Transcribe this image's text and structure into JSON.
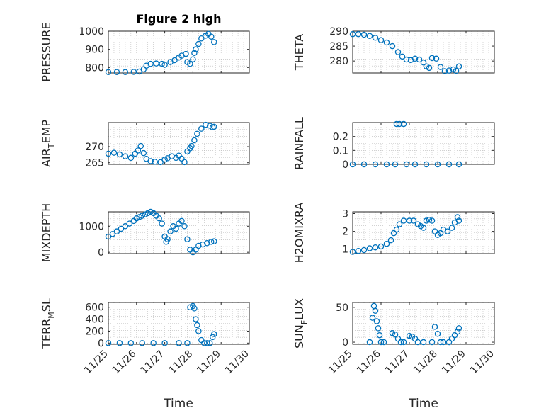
{
  "figure": {
    "title": "Figure 2 high",
    "xlabel": "Time",
    "marker_color": "#0072bd"
  },
  "chart_data": [
    {
      "type": "scatter",
      "ylabel": "PRESSURE",
      "title": "Figure 2 high",
      "xlim": [
        0,
        5
      ],
      "ylim": [
        770,
        1000
      ],
      "yticks": [
        800,
        900,
        1000
      ],
      "xticks": [
        "11/25",
        "11/26",
        "11/27",
        "11/28",
        "11/29",
        "11/30"
      ],
      "x": [
        0.0,
        0.3,
        0.6,
        0.9,
        1.1,
        1.25,
        1.35,
        1.5,
        1.7,
        1.9,
        2.0,
        2.2,
        2.35,
        2.5,
        2.6,
        2.75,
        2.8,
        2.9,
        3.0,
        3.05,
        3.1,
        3.2,
        3.3,
        3.45,
        3.55,
        3.65,
        3.75
      ],
      "y": [
        775,
        775,
        775,
        776,
        778,
        790,
        810,
        820,
        822,
        820,
        815,
        830,
        840,
        855,
        865,
        875,
        830,
        820,
        845,
        880,
        900,
        930,
        960,
        975,
        985,
        970,
        940
      ]
    },
    {
      "type": "scatter",
      "ylabel": "THETA",
      "xlim": [
        0,
        5
      ],
      "ylim": [
        276,
        290
      ],
      "yticks": [
        280,
        285,
        290
      ],
      "xticks": [
        "11/25",
        "11/26",
        "11/27",
        "11/28",
        "11/29",
        "11/30"
      ],
      "x": [
        0.0,
        0.2,
        0.4,
        0.6,
        0.8,
        1.0,
        1.2,
        1.4,
        1.6,
        1.75,
        1.9,
        2.05,
        2.2,
        2.35,
        2.5,
        2.6,
        2.7,
        2.8,
        2.95,
        3.1,
        3.25,
        3.4,
        3.55,
        3.65,
        3.75
      ],
      "y": [
        289,
        289,
        288.8,
        288.4,
        287.8,
        287,
        286.2,
        285,
        283,
        281.5,
        280.5,
        280.3,
        280.8,
        280.5,
        279.5,
        278.2,
        277.7,
        281,
        280.8,
        278,
        276.6,
        276.8,
        277.2,
        276.7,
        278.2
      ]
    },
    {
      "type": "scatter",
      "ylabel": "AIR_TEMP",
      "ylabel_main": "AIR",
      "ylabel_sub": "T",
      "ylabel_rest": "EMP",
      "xlim": [
        0,
        5
      ],
      "ylim": [
        264.5,
        277.5
      ],
      "yticks": [
        265,
        270
      ],
      "xticks": [
        "11/25",
        "11/26",
        "11/27",
        "11/28",
        "11/29",
        "11/30"
      ],
      "x": [
        0.0,
        0.2,
        0.4,
        0.6,
        0.8,
        0.95,
        1.05,
        1.15,
        1.25,
        1.35,
        1.5,
        1.65,
        1.85,
        2.0,
        2.1,
        2.25,
        2.4,
        2.5,
        2.6,
        2.7,
        2.8,
        2.9,
        2.95,
        3.05,
        3.15,
        3.3,
        3.45,
        3.6,
        3.7,
        3.75
      ],
      "y": [
        267.8,
        268.1,
        267.6,
        267.0,
        266.5,
        267.8,
        268.8,
        270.2,
        268.0,
        266.2,
        265.5,
        265.3,
        265.2,
        266.0,
        266.4,
        267.0,
        266.5,
        267.2,
        266.3,
        265.2,
        268.5,
        269.5,
        270.2,
        272.0,
        274.0,
        275.6,
        276.8,
        276.5,
        276.0,
        276.2
      ]
    },
    {
      "type": "scatter",
      "ylabel": "RAINFALL",
      "xlim": [
        0,
        5
      ],
      "ylim": [
        0,
        0.3
      ],
      "yticks": [
        0,
        0.1,
        0.2
      ],
      "ytick_labels": [
        "0",
        "0.1",
        "0.2"
      ],
      "xticks": [
        "11/25",
        "11/26",
        "11/27",
        "11/28",
        "11/29",
        "11/30"
      ],
      "x": [
        0.0,
        0.4,
        0.8,
        1.2,
        1.5,
        1.55,
        1.65,
        1.8,
        1.9,
        2.2,
        2.6,
        3.0,
        3.4,
        3.75
      ],
      "y": [
        0,
        0,
        0,
        0,
        0,
        0.29,
        0.29,
        0.29,
        0,
        0,
        0,
        0,
        0,
        0
      ]
    },
    {
      "type": "scatter",
      "ylabel": "MIXDEPTH",
      "xlim": [
        0,
        5
      ],
      "ylim": [
        -50,
        1550
      ],
      "yticks": [
        0,
        1000
      ],
      "xticks": [
        "11/25",
        "11/26",
        "11/27",
        "11/28",
        "11/29",
        "11/30"
      ],
      "x": [
        0.0,
        0.15,
        0.3,
        0.45,
        0.6,
        0.75,
        0.9,
        1.0,
        1.1,
        1.2,
        1.3,
        1.4,
        1.5,
        1.6,
        1.7,
        1.8,
        1.9,
        2.0,
        2.05,
        2.1,
        2.2,
        2.3,
        2.4,
        2.5,
        2.6,
        2.7,
        2.8,
        2.9,
        3.0,
        3.1,
        3.2,
        3.35,
        3.5,
        3.65,
        3.75
      ],
      "y": [
        600,
        700,
        800,
        900,
        1000,
        1100,
        1200,
        1300,
        1350,
        1400,
        1450,
        1500,
        1550,
        1500,
        1400,
        1300,
        1100,
        600,
        400,
        500,
        800,
        1000,
        900,
        1100,
        1200,
        1000,
        500,
        100,
        0,
        100,
        250,
        300,
        350,
        400,
        420
      ]
    },
    {
      "type": "scatter",
      "ylabel": "H2OMIXRA",
      "xlim": [
        0,
        5
      ],
      "ylim": [
        0.75,
        3.1
      ],
      "yticks": [
        1,
        2,
        3
      ],
      "xticks": [
        "11/25",
        "11/26",
        "11/27",
        "11/28",
        "11/29",
        "11/30"
      ],
      "x": [
        0.0,
        0.2,
        0.4,
        0.6,
        0.8,
        1.0,
        1.2,
        1.35,
        1.45,
        1.55,
        1.65,
        1.8,
        2.0,
        2.15,
        2.3,
        2.4,
        2.5,
        2.6,
        2.7,
        2.8,
        2.9,
        3.0,
        3.1,
        3.2,
        3.35,
        3.5,
        3.6,
        3.7,
        3.75
      ],
      "y": [
        0.85,
        0.9,
        0.95,
        1.05,
        1.1,
        1.15,
        1.3,
        1.5,
        1.9,
        2.1,
        2.4,
        2.6,
        2.6,
        2.6,
        2.4,
        2.3,
        2.2,
        2.6,
        2.65,
        2.6,
        2.0,
        1.8,
        1.9,
        2.1,
        2.0,
        2.2,
        2.5,
        2.8,
        2.6
      ]
    },
    {
      "type": "scatter",
      "ylabel": "TERR_MSL",
      "ylabel_main": "TERR",
      "ylabel_sub": "M",
      "ylabel_rest": "SL",
      "xlim": [
        0,
        5
      ],
      "ylim": [
        -20,
        680
      ],
      "yticks": [
        0,
        200,
        400,
        600
      ],
      "xticks": [
        "11/25",
        "11/26",
        "11/27",
        "11/28",
        "11/29",
        "11/30"
      ],
      "x": [
        0.0,
        0.4,
        0.8,
        1.2,
        1.6,
        2.0,
        2.5,
        2.8,
        2.9,
        3.0,
        3.05,
        3.1,
        3.15,
        3.2,
        3.3,
        3.4,
        3.5,
        3.6,
        3.7,
        3.75
      ],
      "y": [
        0,
        0,
        0,
        0,
        0,
        0,
        0,
        0,
        600,
        620,
        580,
        400,
        300,
        200,
        50,
        0,
        0,
        0,
        100,
        150
      ]
    },
    {
      "type": "scatter",
      "ylabel": "SUN_FLUX",
      "ylabel_main": "SUN",
      "ylabel_sub": "F",
      "ylabel_rest": "LUX",
      "xlim": [
        0,
        5
      ],
      "ylim": [
        -3,
        57
      ],
      "yticks": [
        0,
        50
      ],
      "xticks": [
        "11/25",
        "11/26",
        "11/27",
        "11/28",
        "11/29",
        "11/30"
      ],
      "x": [
        0.6,
        0.7,
        0.75,
        0.8,
        0.85,
        0.9,
        0.95,
        1.0,
        1.1,
        1.4,
        1.5,
        1.6,
        1.7,
        1.8,
        2.0,
        2.1,
        2.2,
        2.3,
        2.5,
        2.8,
        2.9,
        3.0,
        3.1,
        3.2,
        3.4,
        3.5,
        3.6,
        3.7,
        3.75
      ],
      "y": [
        0,
        35,
        52,
        45,
        30,
        20,
        10,
        0,
        0,
        13,
        11,
        5,
        0,
        0,
        9,
        8,
        5,
        0,
        0,
        0,
        22,
        12,
        0,
        0,
        0,
        5,
        10,
        15,
        20
      ]
    }
  ]
}
